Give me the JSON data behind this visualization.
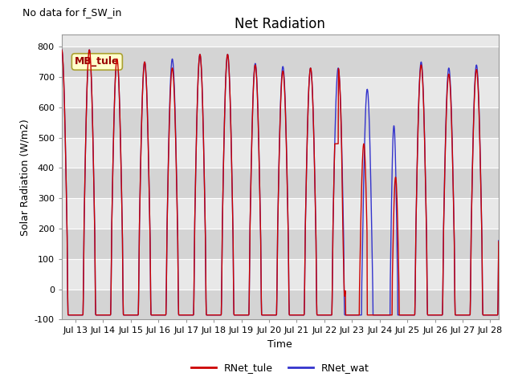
{
  "title": "Net Radiation",
  "note": "No data for f_SW_in",
  "ylabel": "Solar Radiation (W/m2)",
  "xlabel": "Time",
  "legend_box_label": "MB_tule",
  "ylim": [
    -100,
    840
  ],
  "xlim_days": [
    12.5,
    28.3
  ],
  "xtick_days": [
    13,
    14,
    15,
    16,
    17,
    18,
    19,
    20,
    21,
    22,
    23,
    24,
    25,
    26,
    27,
    28
  ],
  "xtick_labels": [
    "Jul 13",
    "Jul 14",
    "Jul 15",
    "Jul 16",
    "Jul 17",
    "Jul 18",
    "Jul 19",
    "Jul 20",
    "Jul 21",
    "Jul 22",
    "Jul 23",
    "Jul 24",
    "Jul 25",
    "Jul 26",
    "Jul 27",
    "Jul 28"
  ],
  "yticks": [
    -100,
    0,
    100,
    200,
    300,
    400,
    500,
    600,
    700,
    800
  ],
  "line_tule_color": "#cc0000",
  "line_wat_color": "#3333cc",
  "legend_entries": [
    "RNet_tule",
    "RNet_wat"
  ],
  "plot_bg_color": "#e8e8e8",
  "band_color": "#d4d4d4",
  "title_fontsize": 12,
  "label_fontsize": 9,
  "tick_fontsize": 8,
  "note_fontsize": 9
}
